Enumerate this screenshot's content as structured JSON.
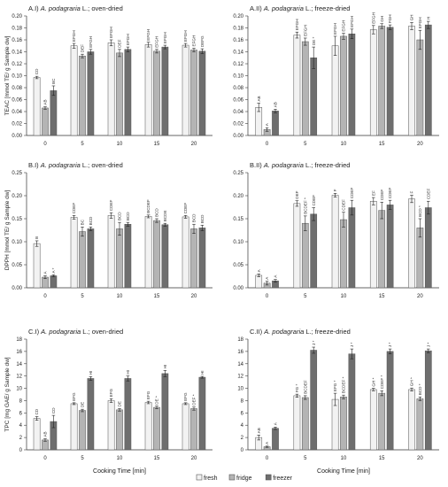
{
  "figure": {
    "xlabel": "Cooking Time [min]",
    "legend": [
      {
        "name": "fresh",
        "color": "#f2f2f2"
      },
      {
        "name": "fridge",
        "color": "#b4b4b4"
      },
      {
        "name": "freezer",
        "color": "#6e6e6e"
      }
    ],
    "colors": {
      "fresh": "#f2f2f2",
      "fridge": "#b4b4b4",
      "freezer": "#6e6e6e",
      "stroke": "#555555"
    }
  },
  "chart_data": [
    {
      "type": "bar",
      "title_prefix": "A.I)",
      "title_species": "A. podagraria",
      "title_suffix": "L.; oven-dried",
      "ylabel": "TEAC [mmol TE/ g Sample dw]",
      "categories": [
        "0",
        "5",
        "10",
        "15",
        "20"
      ],
      "ylim": [
        0,
        0.2
      ],
      "yticks": [
        "0.00",
        "0.02",
        "0.04",
        "0.06",
        "0.08",
        "0.10",
        "0.12",
        "0.14",
        "0.16",
        "0.18",
        "0.20"
      ],
      "series": [
        {
          "name": "fresh",
          "values": [
            0.097,
            0.15,
            0.155,
            0.152,
            0.151
          ],
          "errors": [
            0.002,
            0.004,
            0.005,
            0.004,
            0.003
          ],
          "labels": [
            "CD",
            "EFGH",
            "EFGH",
            "EFGH",
            "EFGH"
          ]
        },
        {
          "name": "fridge",
          "values": [
            0.046,
            0.133,
            0.138,
            0.141,
            0.143
          ],
          "errors": [
            0.002,
            0.003,
            0.006,
            0.003,
            0.003
          ],
          "labels": [
            "AB",
            "DEF",
            "DEF",
            "EFGH",
            "EFGH"
          ]
        },
        {
          "name": "freezer",
          "values": [
            0.075,
            0.14,
            0.144,
            0.148,
            0.141
          ],
          "errors": [
            0.008,
            0.004,
            0.004,
            0.003,
            0.004
          ],
          "labels": [
            "BC",
            "EFGH",
            "EFGH",
            "EFGH",
            "DEFG"
          ]
        }
      ]
    },
    {
      "type": "bar",
      "title_prefix": "A.II)",
      "title_species": "A. podagraria",
      "title_suffix": "L.; freeze-dried",
      "ylabel": "",
      "categories": [
        "0",
        "5",
        "10",
        "15",
        "20"
      ],
      "ylim": [
        0,
        0.2
      ],
      "yticks": [
        "0.00",
        "0.02",
        "0.04",
        "0.06",
        "0.08",
        "0.10",
        "0.12",
        "0.14",
        "0.16",
        "0.18",
        "0.20"
      ],
      "series": [
        {
          "name": "fresh",
          "values": [
            0.047,
            0.168,
            0.15,
            0.177,
            0.183
          ],
          "errors": [
            0.007,
            0.005,
            0.016,
            0.007,
            0.006
          ],
          "labels": [
            "AB",
            "EFGH",
            "EFGH",
            "EFGH",
            "GH"
          ]
        },
        {
          "name": "fridge",
          "values": [
            0.01,
            0.157,
            0.166,
            0.183,
            0.16
          ],
          "errors": [
            0.003,
            0.006,
            0.005,
            0.004,
            0.016
          ],
          "labels": [
            "A",
            "EFGH",
            "EFGH",
            "GH",
            "EFGH"
          ]
        },
        {
          "name": "freezer",
          "values": [
            0.041,
            0.13,
            0.17,
            0.181,
            0.185
          ],
          "errors": [
            0.003,
            0.018,
            0.008,
            0.004,
            0.006
          ],
          "labels": [
            "AB",
            "DE *",
            "EFGH",
            "FGH",
            "H"
          ]
        }
      ]
    },
    {
      "type": "bar",
      "title_prefix": "B.I)",
      "title_species": "A. podagraria",
      "title_suffix": "L.; oven-dried",
      "ylabel": "DPPH [mmol TE/ g Sample dw]",
      "categories": [
        "0",
        "5",
        "10",
        "15",
        "20"
      ],
      "ylim": [
        0,
        0.25
      ],
      "yticks": [
        "0.00",
        "0.05",
        "0.10",
        "0.15",
        "0.20",
        "0.25"
      ],
      "series": [
        {
          "name": "fresh",
          "values": [
            0.096,
            0.153,
            0.157,
            0.155,
            0.154
          ],
          "errors": [
            0.006,
            0.004,
            0.006,
            0.003,
            0.003
          ],
          "labels": [
            "B",
            "CDEF",
            "CDEF",
            "BCDEF",
            "CDEF"
          ]
        },
        {
          "name": "fridge",
          "values": [
            0.023,
            0.122,
            0.128,
            0.146,
            0.128
          ],
          "errors": [
            0.003,
            0.01,
            0.014,
            0.004,
            0.01
          ],
          "labels": [
            "A",
            "BC",
            "BCD",
            "BCD",
            "BCD"
          ]
        },
        {
          "name": "freezer",
          "values": [
            0.026,
            0.128,
            0.138,
            0.137,
            0.13
          ],
          "errors": [
            0.002,
            0.004,
            0.004,
            0.003,
            0.006
          ],
          "labels": [
            "A *",
            "BCD",
            "BCD",
            "BCDE",
            "BCD"
          ]
        }
      ]
    },
    {
      "type": "bar",
      "title_prefix": "B.II)",
      "title_species": "A. podagraria",
      "title_suffix": "L.; freeze-dried",
      "ylabel": "",
      "categories": [
        "0",
        "5",
        "10",
        "15",
        "20"
      ],
      "ylim": [
        0,
        0.25
      ],
      "yticks": [
        "0.00",
        "0.05",
        "0.10",
        "0.15",
        "0.20",
        "0.25"
      ],
      "series": [
        {
          "name": "fresh",
          "values": [
            0.027,
            0.183,
            0.201,
            0.188,
            0.193
          ],
          "errors": [
            0.003,
            0.006,
            0.004,
            0.008,
            0.008
          ],
          "labels": [
            "A",
            "DEF",
            "F",
            "EF",
            "F"
          ]
        },
        {
          "name": "fridge",
          "values": [
            0.01,
            0.14,
            0.148,
            0.168,
            0.13
          ],
          "errors": [
            0.004,
            0.016,
            0.016,
            0.018,
            0.02
          ],
          "labels": [
            "A",
            "BCDEF *",
            "CDEF",
            "CDEF",
            "BCD *"
          ]
        },
        {
          "name": "freezer",
          "values": [
            0.015,
            0.16,
            0.174,
            0.18,
            0.174
          ],
          "errors": [
            0.003,
            0.014,
            0.016,
            0.01,
            0.014
          ],
          "labels": [
            "A",
            "CDEF",
            "CDEF",
            "CDEF",
            "CDEF"
          ]
        }
      ]
    },
    {
      "type": "bar",
      "title_prefix": "C.I)",
      "title_species": "A. podagraria",
      "title_suffix": "L.; oven-dried",
      "ylabel": "TPC [mg GAE/ g Sample dw]",
      "categories": [
        "0",
        "5",
        "10",
        "15",
        "20"
      ],
      "ylim": [
        0,
        18
      ],
      "yticks": [
        "0",
        "2",
        "4",
        "6",
        "8",
        "10",
        "12",
        "14",
        "16",
        "18"
      ],
      "series": [
        {
          "name": "fresh",
          "values": [
            5.1,
            7.5,
            8.0,
            7.7,
            7.5
          ],
          "errors": [
            0.3,
            0.15,
            0.3,
            0.2,
            0.15
          ],
          "labels": [
            "CD",
            "EFG",
            "EFG",
            "EFG",
            "EFG"
          ]
        },
        {
          "name": "fridge",
          "values": [
            1.6,
            6.4,
            6.5,
            6.9,
            6.7
          ],
          "errors": [
            0.2,
            0.2,
            0.2,
            0.2,
            0.25
          ],
          "labels": [
            "AB",
            "DE",
            "DE",
            "DE *",
            "DEF *"
          ]
        },
        {
          "name": "freezer",
          "values": [
            4.6,
            11.6,
            11.6,
            12.4,
            11.8
          ],
          "errors": [
            1.0,
            0.3,
            0.4,
            0.5,
            0.15
          ],
          "labels": [
            "CD",
            "HI",
            "HI",
            "HI",
            "HI"
          ]
        }
      ]
    },
    {
      "type": "bar",
      "title_prefix": "C.II)",
      "title_species": "A. podagraria",
      "title_suffix": "L.; freeze-dried",
      "ylabel": "",
      "categories": [
        "0",
        "5",
        "10",
        "15",
        "20"
      ],
      "ylim": [
        0,
        18
      ],
      "yticks": [
        "0",
        "2",
        "4",
        "6",
        "8",
        "10",
        "12",
        "14",
        "16",
        "18"
      ],
      "series": [
        {
          "name": "fresh",
          "values": [
            2.0,
            8.8,
            8.2,
            9.8,
            9.8
          ],
          "errors": [
            0.4,
            0.25,
            1.0,
            0.2,
            0.25
          ],
          "labels": [
            "AB",
            "FG *",
            "EFG *",
            "GH *",
            "GH *"
          ]
        },
        {
          "name": "fridge",
          "values": [
            0.5,
            8.5,
            8.6,
            9.2,
            8.3
          ],
          "errors": [
            0.1,
            0.3,
            0.3,
            0.4,
            0.3
          ],
          "labels": [
            "A",
            "BCDEF",
            "BCDEF *",
            "CDEF *",
            "BCD *"
          ]
        },
        {
          "name": "freezer",
          "values": [
            3.5,
            16.2,
            15.6,
            16.0,
            16.1
          ],
          "errors": [
            0.2,
            0.5,
            0.8,
            0.4,
            0.3
          ],
          "labels": [
            "A",
            "J *",
            "J *",
            "J *",
            "J *"
          ]
        }
      ]
    }
  ]
}
